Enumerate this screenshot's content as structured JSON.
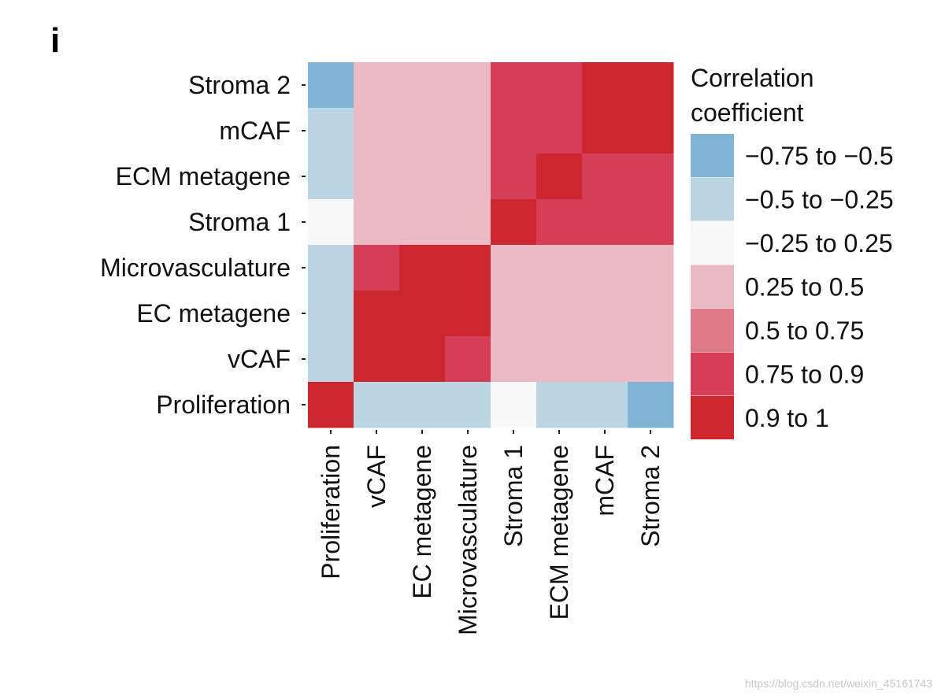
{
  "chart_data": {
    "type": "heatmap",
    "panel_label": "i",
    "x_categories": [
      "Proliferation",
      "vCAF",
      "EC metagene",
      "Microvasculature",
      "Stroma 1",
      "ECM metagene",
      "mCAF",
      "Stroma 2"
    ],
    "y_categories": [
      "Stroma 2",
      "mCAF",
      "ECM metagene",
      "Stroma 1",
      "Microvasculature",
      "EC metagene",
      "vCAF",
      "Proliferation"
    ],
    "bins": [
      [
        0,
        3,
        3,
        3,
        5,
        5,
        6,
        6
      ],
      [
        1,
        3,
        3,
        3,
        5,
        5,
        6,
        6
      ],
      [
        1,
        3,
        3,
        3,
        5,
        6,
        5,
        5
      ],
      [
        2,
        3,
        3,
        3,
        6,
        5,
        5,
        5
      ],
      [
        1,
        5,
        6,
        6,
        3,
        3,
        3,
        3
      ],
      [
        1,
        6,
        6,
        6,
        3,
        3,
        3,
        3
      ],
      [
        1,
        6,
        6,
        5,
        3,
        3,
        3,
        3
      ],
      [
        6,
        1,
        1,
        1,
        2,
        1,
        1,
        0
      ]
    ],
    "legend": {
      "title": [
        "Correlation",
        "coefficient"
      ],
      "entries": [
        {
          "label": "−0.75 to −0.5",
          "color": "#7fb4d4"
        },
        {
          "label": "−0.5 to −0.25",
          "color": "#bcd5e2"
        },
        {
          "label": "−0.25 to 0.25",
          "color": "#f9f8f9"
        },
        {
          "label": "0.25 to 0.5",
          "color": "#ecbac4"
        },
        {
          "label": "0.5 to 0.75",
          "color": "#e07a8a"
        },
        {
          "label": "0.75 to 0.9",
          "color": "#d63d56"
        },
        {
          "label": "0.9 to 1",
          "color": "#cc262f"
        }
      ]
    }
  },
  "watermark": "https://blog.csdn.net/weixin_45161743"
}
